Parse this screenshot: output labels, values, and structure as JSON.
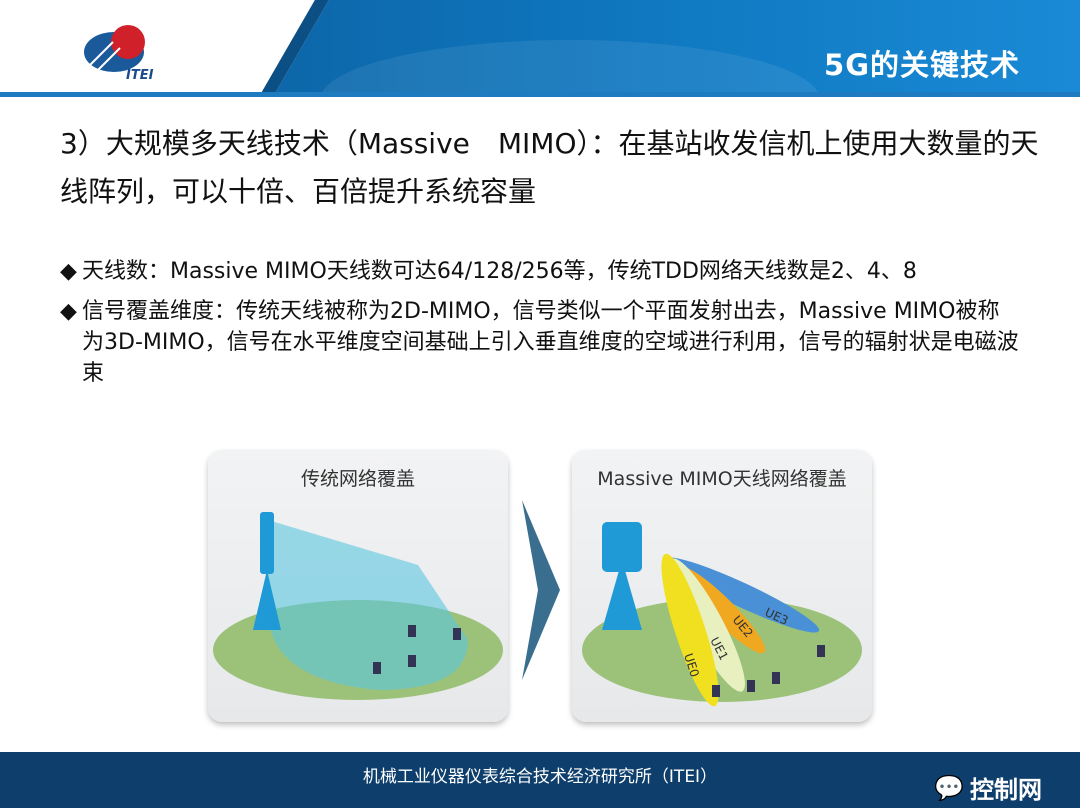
{
  "header": {
    "title": "5G的关键技术",
    "logo_text": "ITEI"
  },
  "heading": "3）大规模多天线技术（Massive　MIMO）：在基站收发信机上使用大数量的天线阵列，可以十倍、百倍提升系统容量",
  "bullets": [
    {
      "marker": "◆",
      "text": "天线数：Massive MIMO天线数可达64/128/256等，传统TDD网络天线数是2、4、8"
    },
    {
      "marker": "◆",
      "text": "信号覆盖维度：传统天线被称为2D-MIMO，信号类似一个平面发射出去，Massive MIMO被称为3D-MIMO，信号在水平维度空间基础上引入垂直维度的空域进行利用，信号的辐射状是电磁波束"
    }
  ],
  "figure": {
    "left_title": "传统网络覆盖",
    "right_title": "Massive MIMO天线网络覆盖",
    "beams": [
      "UE0",
      "UE1",
      "UE2",
      "UE3"
    ]
  },
  "footer": {
    "text": "机械工业仪器仪表综合技术经济研究所（ITEI）"
  },
  "watermark": {
    "text": "控制网"
  },
  "colors": {
    "header": "#0f78c0",
    "footer": "#0e3f6c",
    "logo_red": "#d0202a"
  }
}
